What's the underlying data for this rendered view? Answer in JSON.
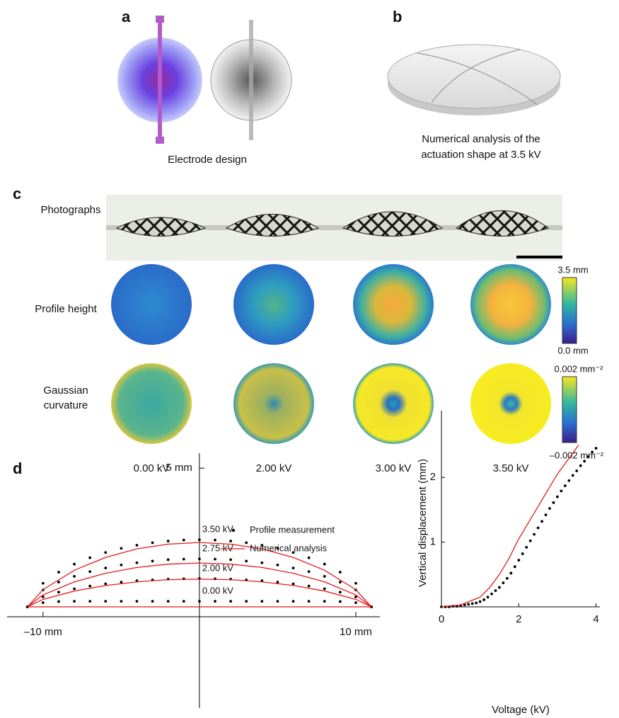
{
  "panels": {
    "a": {
      "label": "a",
      "caption": "Electrode design"
    },
    "b": {
      "label": "b",
      "caption_lines": [
        "Numerical analysis of the",
        "actuation shape at 3.5 kV"
      ]
    },
    "c": {
      "label": "c",
      "rows": [
        "Photographs",
        "Profile height"
      ],
      "curvature_lines": [
        "Gaussian",
        "curvature"
      ],
      "voltages": [
        "0.00 kV",
        "2.00 kV",
        "3.00 kV",
        "3.50 kV"
      ],
      "height_bar": [
        "3.5 mm",
        "0.0 mm"
      ],
      "curvature_bar": [
        "0.002 mm⁻²",
        "–0.002 mm⁻²"
      ]
    },
    "d": {
      "label": "d"
    }
  },
  "chart_data": [
    {
      "type": "profile",
      "xlim": [
        -12.3,
        11.54
      ],
      "ylim": [
        -3.65,
        5.54
      ],
      "xticks": [
        {
          "value": -10,
          "label": "–10 mm"
        },
        {
          "value": 10,
          "label": "10 mm"
        }
      ],
      "yticks": [
        {
          "value": 5,
          "label": "5 mm"
        }
      ],
      "series": [
        {
          "name": "Profile measurement",
          "color": "#000000",
          "style": "dots",
          "x": [
            -11,
            -10,
            -9,
            -8,
            -7,
            -6,
            -5,
            -4,
            -3,
            -2,
            -1,
            0,
            1,
            2,
            3,
            4,
            5,
            6,
            7,
            8,
            9,
            10,
            11
          ],
          "curves": [
            {
              "label": "3.50 kV",
              "values": [
                0,
                0.85,
                1.25,
                1.54,
                1.77,
                1.96,
                2.11,
                2.22,
                2.31,
                2.37,
                2.41,
                2.42,
                2.41,
                2.37,
                2.31,
                2.22,
                2.11,
                1.96,
                1.77,
                1.54,
                1.25,
                0.85,
                0
              ]
            },
            {
              "label": "2.75 kV",
              "values": [
                0,
                0.61,
                0.89,
                1.1,
                1.27,
                1.4,
                1.51,
                1.59,
                1.65,
                1.7,
                1.72,
                1.73,
                1.72,
                1.7,
                1.65,
                1.59,
                1.51,
                1.4,
                1.27,
                1.1,
                0.89,
                0.61,
                0
              ]
            },
            {
              "label": "2.00 kV",
              "values": [
                0,
                0.36,
                0.53,
                0.65,
                0.75,
                0.83,
                0.89,
                0.94,
                0.97,
                1.0,
                1.01,
                1.02,
                1.01,
                1.0,
                0.97,
                0.94,
                0.89,
                0.83,
                0.75,
                0.65,
                0.53,
                0.36,
                0
              ]
            },
            {
              "label": "0.00 kV",
              "values": [
                0,
                0.15,
                0.19,
                0.2,
                0.2,
                0.2,
                0.2,
                0.2,
                0.2,
                0.2,
                0.2,
                0.2,
                0.2,
                0.2,
                0.2,
                0.2,
                0.2,
                0.2,
                0.2,
                0.2,
                0.19,
                0.15,
                0
              ]
            }
          ]
        },
        {
          "name": "Numerical analysis",
          "color": "#e31a1c",
          "style": "line",
          "x": [
            -11,
            -10,
            -8,
            -6,
            -4,
            -2,
            0,
            2,
            4,
            6,
            8,
            10,
            11
          ],
          "curves": [
            {
              "values": [
                0,
                0.62,
                1.32,
                1.78,
                2.09,
                2.26,
                2.32,
                2.26,
                2.09,
                1.78,
                1.32,
                0.62,
                0
              ]
            },
            {
              "values": [
                0,
                0.43,
                0.9,
                1.21,
                1.42,
                1.54,
                1.58,
                1.54,
                1.42,
                1.21,
                0.9,
                0.43,
                0
              ]
            },
            {
              "values": [
                0,
                0.27,
                0.57,
                0.77,
                0.9,
                0.98,
                1.0,
                0.98,
                0.9,
                0.77,
                0.57,
                0.27,
                0
              ]
            },
            {
              "values": [
                0,
                0,
                0,
                0,
                0,
                0,
                0,
                0,
                0,
                0,
                0,
                0,
                0
              ]
            }
          ]
        }
      ]
    },
    {
      "type": "scatter",
      "x_label": "Voltage (kV)",
      "y_label": "Vertical displacement (mm)",
      "xlim": [
        0,
        4.1
      ],
      "ylim": [
        0,
        3.03
      ],
      "xticks": [
        0,
        2,
        4
      ],
      "yticks": [
        1,
        2
      ],
      "series": [
        {
          "color": "#000000",
          "style": "dots",
          "x": [
            0,
            0.1,
            0.2,
            0.3,
            0.4,
            0.5,
            0.6,
            0.7,
            0.8,
            0.9,
            1.0,
            1.1,
            1.2,
            1.3,
            1.4,
            1.5,
            1.6,
            1.7,
            1.8,
            1.9,
            2.0,
            2.1,
            2.2,
            2.3,
            2.4,
            2.5,
            2.6,
            2.7,
            2.8,
            2.9,
            3.0,
            3.1,
            3.2,
            3.3,
            3.4,
            3.5,
            3.6,
            3.7,
            3.8,
            3.9,
            4.0
          ],
          "values": [
            0,
            0,
            0,
            0.01,
            0.01,
            0.02,
            0.03,
            0.04,
            0.05,
            0.06,
            0.08,
            0.11,
            0.15,
            0.2,
            0.25,
            0.3,
            0.37,
            0.44,
            0.52,
            0.62,
            0.72,
            0.82,
            0.92,
            1.02,
            1.12,
            1.22,
            1.32,
            1.42,
            1.52,
            1.61,
            1.7,
            1.79,
            1.87,
            1.95,
            2.03,
            2.1,
            2.18,
            2.25,
            2.32,
            2.39,
            2.45
          ]
        },
        {
          "color": "#e31a1c",
          "style": "line",
          "x": [
            0,
            0.5,
            1.0,
            1.25,
            1.5,
            1.75,
            2.0,
            2.5,
            3.0,
            3.55
          ],
          "values": [
            0,
            0.03,
            0.15,
            0.3,
            0.5,
            0.75,
            1.05,
            1.55,
            2.05,
            2.5
          ]
        }
      ]
    }
  ]
}
